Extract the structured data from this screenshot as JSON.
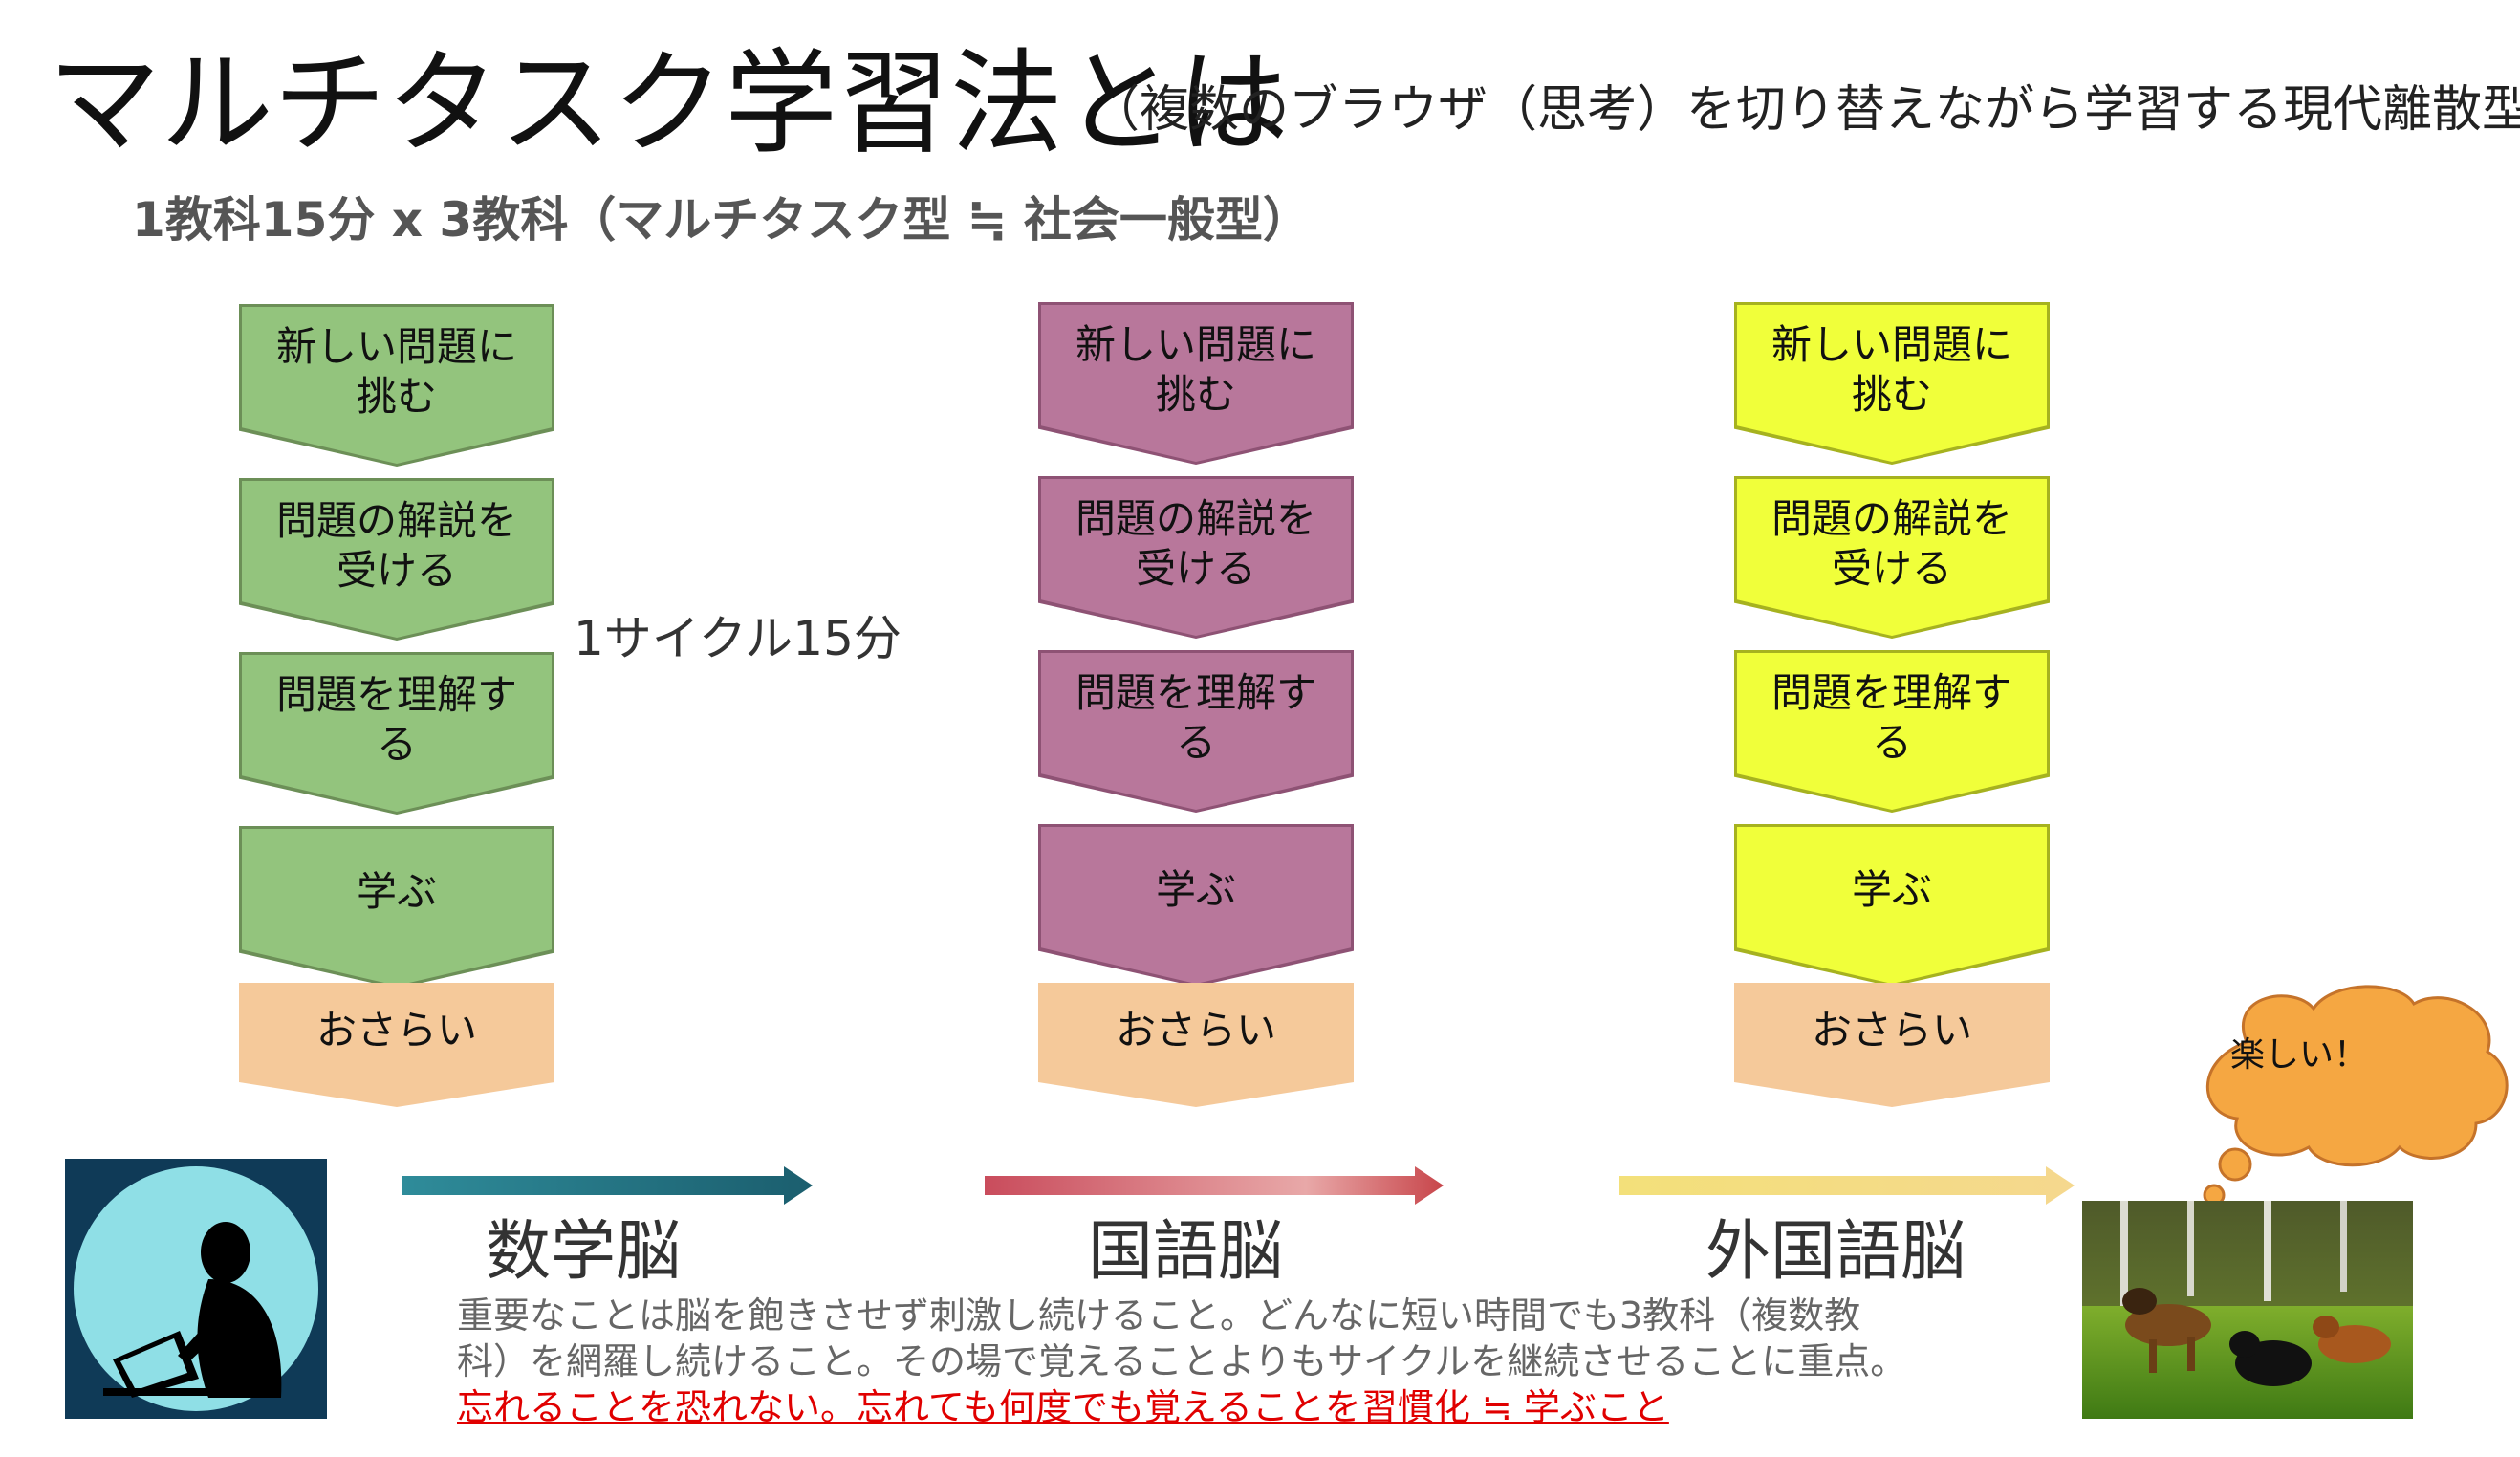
{
  "title": {
    "main": "マルチタスク学習法とは",
    "sub": "（複数のブラウザ（思考）を切り替えながら学習する現代離散型）"
  },
  "subtitle": "1教科15分 x 3教科（マルチタスク型 ≒ 社会一般型）",
  "cycle_label": "1サイクル15分",
  "colors": {
    "math": "#93c47d",
    "japanese": "#b8779b",
    "foreign": "#f0ff3a",
    "review": "#f5c99a",
    "underline_text": "#e00000"
  },
  "columns": [
    {
      "steps": [
        "新しい問題に\n挑む",
        "問題の解説を\n受ける",
        "問題を理解す\nる",
        "学ぶ"
      ],
      "review": "おさらい",
      "brain": "数学脳"
    },
    {
      "steps": [
        "新しい問題に\n挑む",
        "問題の解説を\n受ける",
        "問題を理解す\nる",
        "学ぶ"
      ],
      "review": "おさらい",
      "brain": "国語脳"
    },
    {
      "steps": [
        "新しい問題に\n挑む",
        "問題の解説を\n受ける",
        "問題を理解す\nる",
        "学ぶ"
      ],
      "review": "おさらい",
      "brain": "外国語脳"
    }
  ],
  "summary": {
    "line1": "重要なことは脳を飽きさせず刺激し続けること。どんなに短い時間でも3教科（複数教",
    "line2": "科）を網羅し続けること。その場で覚えることよりもサイクルを継続させることに重点。",
    "line3": "忘れることを恐れない。忘れても何度でも覚えることを習慣化 ≒ 学ぶこと"
  },
  "bubble_text": "楽しい！",
  "icons": {
    "student": "student-reading-silhouette-icon",
    "dogs": "dogs-playing-photo"
  }
}
